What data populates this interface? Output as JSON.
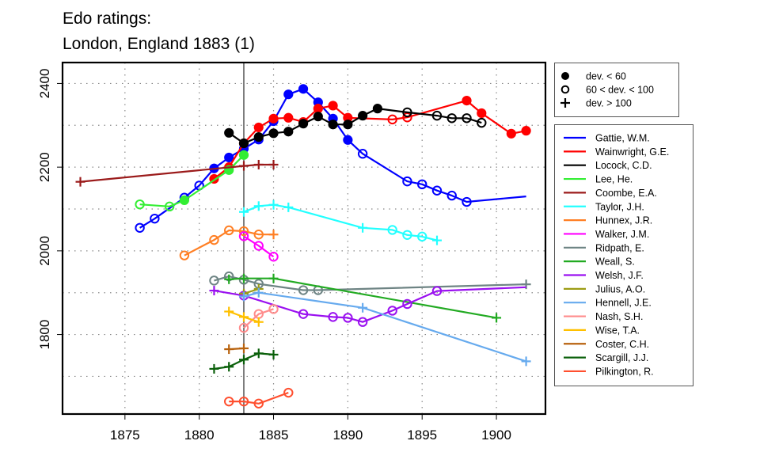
{
  "chart_data": {
    "type": "line",
    "title": "Edo ratings:",
    "subtitle": "London, England 1883 (1)",
    "xlabel": "",
    "ylabel": "",
    "xlim": [
      1870.8,
      1903.3
    ],
    "ylim": [
      1610,
      2450
    ],
    "x_ticks": [
      1875,
      1880,
      1885,
      1890,
      1895,
      1900
    ],
    "y_ticks": [
      1800,
      2000,
      2200,
      2400
    ],
    "y_grid": [
      1700,
      1800,
      1900,
      2000,
      2100,
      2200,
      2300,
      2400
    ],
    "grid": true,
    "reference_line_x": 1883,
    "marker_legend": {
      "placement": "top-right-outside",
      "entries": [
        {
          "marker": "filled-circle",
          "label": "dev. < 60"
        },
        {
          "marker": "open-circle",
          "label": "60 < dev. < 100"
        },
        {
          "marker": "plus",
          "label": "dev. > 100"
        }
      ]
    },
    "series": [
      {
        "name": "Gattie, W.M.",
        "color": "#0000ff",
        "points": [
          {
            "x": 1876,
            "y": 2055,
            "m": "o"
          },
          {
            "x": 1877,
            "y": 2077,
            "m": "o"
          },
          {
            "x": 1879,
            "y": 2127,
            "m": "o"
          },
          {
            "x": 1880,
            "y": 2156,
            "m": "o"
          },
          {
            "x": 1881,
            "y": 2197,
            "m": "f"
          },
          {
            "x": 1882,
            "y": 2223,
            "m": "f"
          },
          {
            "x": 1883,
            "y": 2244,
            "m": "f"
          },
          {
            "x": 1884,
            "y": 2266,
            "m": "f"
          },
          {
            "x": 1885,
            "y": 2310,
            "m": "f"
          },
          {
            "x": 1886,
            "y": 2374,
            "m": "f"
          },
          {
            "x": 1887,
            "y": 2387,
            "m": "f"
          },
          {
            "x": 1888,
            "y": 2355,
            "m": "f"
          },
          {
            "x": 1889,
            "y": 2316,
            "m": "f"
          },
          {
            "x": 1890,
            "y": 2265,
            "m": "f"
          },
          {
            "x": 1891,
            "y": 2232,
            "m": "o"
          },
          {
            "x": 1894,
            "y": 2166,
            "m": "o"
          },
          {
            "x": 1895,
            "y": 2159,
            "m": "o"
          },
          {
            "x": 1896,
            "y": 2144,
            "m": "o"
          },
          {
            "x": 1897,
            "y": 2132,
            "m": "o"
          },
          {
            "x": 1898,
            "y": 2117,
            "m": "o"
          },
          {
            "x": 1902,
            "y": 2130,
            "m": "n"
          }
        ]
      },
      {
        "name": "Wainwright, G.E.",
        "color": "#ff0000",
        "points": [
          {
            "x": 1881,
            "y": 2172,
            "m": "f"
          },
          {
            "x": 1882,
            "y": 2200,
            "m": "f"
          },
          {
            "x": 1883,
            "y": 2257,
            "m": "f"
          },
          {
            "x": 1884,
            "y": 2295,
            "m": "f"
          },
          {
            "x": 1885,
            "y": 2316,
            "m": "f"
          },
          {
            "x": 1886,
            "y": 2318,
            "m": "f"
          },
          {
            "x": 1887,
            "y": 2308,
            "m": "f"
          },
          {
            "x": 1888,
            "y": 2340,
            "m": "f"
          },
          {
            "x": 1889,
            "y": 2347,
            "m": "f"
          },
          {
            "x": 1890,
            "y": 2318,
            "m": "f"
          },
          {
            "x": 1893,
            "y": 2314,
            "m": "o"
          },
          {
            "x": 1894,
            "y": 2319,
            "m": "o"
          },
          {
            "x": 1898,
            "y": 2359,
            "m": "f"
          },
          {
            "x": 1899,
            "y": 2329,
            "m": "f"
          },
          {
            "x": 1901,
            "y": 2280,
            "m": "f"
          },
          {
            "x": 1902,
            "y": 2287,
            "m": "f"
          }
        ]
      },
      {
        "name": "Locock, C.D.",
        "color": "#000000",
        "points": [
          {
            "x": 1882,
            "y": 2282,
            "m": "f"
          },
          {
            "x": 1883,
            "y": 2257,
            "m": "f"
          },
          {
            "x": 1884,
            "y": 2272,
            "m": "f"
          },
          {
            "x": 1885,
            "y": 2281,
            "m": "f"
          },
          {
            "x": 1886,
            "y": 2285,
            "m": "f"
          },
          {
            "x": 1887,
            "y": 2304,
            "m": "f"
          },
          {
            "x": 1888,
            "y": 2321,
            "m": "f"
          },
          {
            "x": 1889,
            "y": 2302,
            "m": "f"
          },
          {
            "x": 1890,
            "y": 2302,
            "m": "f"
          },
          {
            "x": 1891,
            "y": 2323,
            "m": "f"
          },
          {
            "x": 1892,
            "y": 2340,
            "m": "f"
          },
          {
            "x": 1894,
            "y": 2331,
            "m": "o"
          },
          {
            "x": 1896,
            "y": 2323,
            "m": "o"
          },
          {
            "x": 1897,
            "y": 2317,
            "m": "o"
          },
          {
            "x": 1898,
            "y": 2317,
            "m": "o"
          },
          {
            "x": 1899,
            "y": 2306,
            "m": "o"
          }
        ]
      },
      {
        "name": "Lee, He.",
        "color": "#33ee33",
        "points": [
          {
            "x": 1876,
            "y": 2111,
            "m": "o"
          },
          {
            "x": 1878,
            "y": 2106,
            "m": "o"
          },
          {
            "x": 1879,
            "y": 2121,
            "m": "f"
          },
          {
            "x": 1882,
            "y": 2193,
            "m": "f"
          },
          {
            "x": 1883,
            "y": 2229,
            "m": "f"
          }
        ]
      },
      {
        "name": "Coombe, E.A.",
        "color": "#9b1b1b",
        "points": [
          {
            "x": 1872,
            "y": 2165,
            "m": "p"
          },
          {
            "x": 1883,
            "y": 2203,
            "m": "p"
          },
          {
            "x": 1884,
            "y": 2206,
            "m": "p"
          },
          {
            "x": 1885,
            "y": 2206,
            "m": "p"
          }
        ]
      },
      {
        "name": "Taylor, J.H.",
        "color": "#22ffff",
        "points": [
          {
            "x": 1883,
            "y": 2093,
            "m": "p"
          },
          {
            "x": 1884,
            "y": 2107,
            "m": "p"
          },
          {
            "x": 1885,
            "y": 2110,
            "m": "p"
          },
          {
            "x": 1886,
            "y": 2104,
            "m": "p"
          },
          {
            "x": 1891,
            "y": 2055,
            "m": "p"
          },
          {
            "x": 1893,
            "y": 2050,
            "m": "o"
          },
          {
            "x": 1894,
            "y": 2038,
            "m": "o"
          },
          {
            "x": 1895,
            "y": 2034,
            "m": "o"
          },
          {
            "x": 1896,
            "y": 2025,
            "m": "p"
          }
        ]
      },
      {
        "name": "Hunnex, J.R.",
        "color": "#ff7f24",
        "points": [
          {
            "x": 1879,
            "y": 1989,
            "m": "o"
          },
          {
            "x": 1881,
            "y": 2026,
            "m": "o"
          },
          {
            "x": 1882,
            "y": 2049,
            "m": "o"
          },
          {
            "x": 1883,
            "y": 2047,
            "m": "o"
          },
          {
            "x": 1884,
            "y": 2039,
            "m": "o"
          },
          {
            "x": 1885,
            "y": 2039,
            "m": "p"
          }
        ]
      },
      {
        "name": "Walker, J.M.",
        "color": "#ff00ff",
        "points": [
          {
            "x": 1883,
            "y": 2035,
            "m": "o"
          },
          {
            "x": 1884,
            "y": 2012,
            "m": "o"
          },
          {
            "x": 1885,
            "y": 1986,
            "m": "o"
          }
        ]
      },
      {
        "name": "Ridpath, E.",
        "color": "#6e8484",
        "points": [
          {
            "x": 1881,
            "y": 1929,
            "m": "o"
          },
          {
            "x": 1882,
            "y": 1939,
            "m": "o"
          },
          {
            "x": 1883,
            "y": 1931,
            "m": "o"
          },
          {
            "x": 1884,
            "y": 1921,
            "m": "o"
          },
          {
            "x": 1887,
            "y": 1906,
            "m": "o"
          },
          {
            "x": 1888,
            "y": 1906,
            "m": "o"
          },
          {
            "x": 1902,
            "y": 1920,
            "m": "p"
          }
        ]
      },
      {
        "name": "Weall, S.",
        "color": "#22aa22",
        "points": [
          {
            "x": 1882,
            "y": 1932,
            "m": "p"
          },
          {
            "x": 1883,
            "y": 1934,
            "m": "p"
          },
          {
            "x": 1885,
            "y": 1934,
            "m": "p"
          },
          {
            "x": 1900,
            "y": 1840,
            "m": "p"
          }
        ]
      },
      {
        "name": "Welsh, J.F.",
        "color": "#9a10f0",
        "points": [
          {
            "x": 1881,
            "y": 1905,
            "m": "p"
          },
          {
            "x": 1883,
            "y": 1893,
            "m": "o"
          },
          {
            "x": 1887,
            "y": 1849,
            "m": "o"
          },
          {
            "x": 1889,
            "y": 1842,
            "m": "o"
          },
          {
            "x": 1890,
            "y": 1840,
            "m": "o"
          },
          {
            "x": 1891,
            "y": 1830,
            "m": "o"
          },
          {
            "x": 1893,
            "y": 1857,
            "m": "o"
          },
          {
            "x": 1894,
            "y": 1873,
            "m": "o"
          },
          {
            "x": 1896,
            "y": 1904,
            "m": "o"
          },
          {
            "x": 1902,
            "y": 1913,
            "m": "n"
          }
        ]
      },
      {
        "name": "Julius, A.O.",
        "color": "#9c9c14",
        "points": [
          {
            "x": 1883,
            "y": 1898,
            "m": "p"
          },
          {
            "x": 1884,
            "y": 1909,
            "m": "p"
          }
        ]
      },
      {
        "name": "Hennell, J.E.",
        "color": "#66aaee",
        "points": [
          {
            "x": 1883,
            "y": 1891,
            "m": "p"
          },
          {
            "x": 1884,
            "y": 1900,
            "m": "p"
          },
          {
            "x": 1891,
            "y": 1864,
            "m": "p"
          },
          {
            "x": 1902,
            "y": 1736,
            "m": "p"
          }
        ]
      },
      {
        "name": "Nash, S.H.",
        "color": "#ff8c8c",
        "points": [
          {
            "x": 1883,
            "y": 1816,
            "m": "o"
          },
          {
            "x": 1884,
            "y": 1849,
            "m": "o"
          },
          {
            "x": 1885,
            "y": 1861,
            "m": "o"
          }
        ]
      },
      {
        "name": "Wise, T.A.",
        "color": "#ffc000",
        "points": [
          {
            "x": 1882,
            "y": 1855,
            "m": "p"
          },
          {
            "x": 1883,
            "y": 1842,
            "m": "p"
          },
          {
            "x": 1884,
            "y": 1830,
            "m": "p"
          }
        ]
      },
      {
        "name": "Coster, C.H.",
        "color": "#b8620e",
        "points": [
          {
            "x": 1882,
            "y": 1765,
            "m": "p"
          },
          {
            "x": 1883,
            "y": 1767,
            "m": "p"
          }
        ]
      },
      {
        "name": "Scargill, J.J.",
        "color": "#0b600b",
        "points": [
          {
            "x": 1881,
            "y": 1718,
            "m": "p"
          },
          {
            "x": 1882,
            "y": 1723,
            "m": "p"
          },
          {
            "x": 1883,
            "y": 1740,
            "m": "p"
          },
          {
            "x": 1884,
            "y": 1755,
            "m": "p"
          },
          {
            "x": 1885,
            "y": 1752,
            "m": "p"
          }
        ]
      },
      {
        "name": "Pilkington, R.",
        "color": "#ff4f2f",
        "points": [
          {
            "x": 1882,
            "y": 1640,
            "m": "o"
          },
          {
            "x": 1883,
            "y": 1640,
            "m": "o"
          },
          {
            "x": 1884,
            "y": 1635,
            "m": "o"
          },
          {
            "x": 1886,
            "y": 1661,
            "m": "o"
          }
        ]
      }
    ]
  }
}
